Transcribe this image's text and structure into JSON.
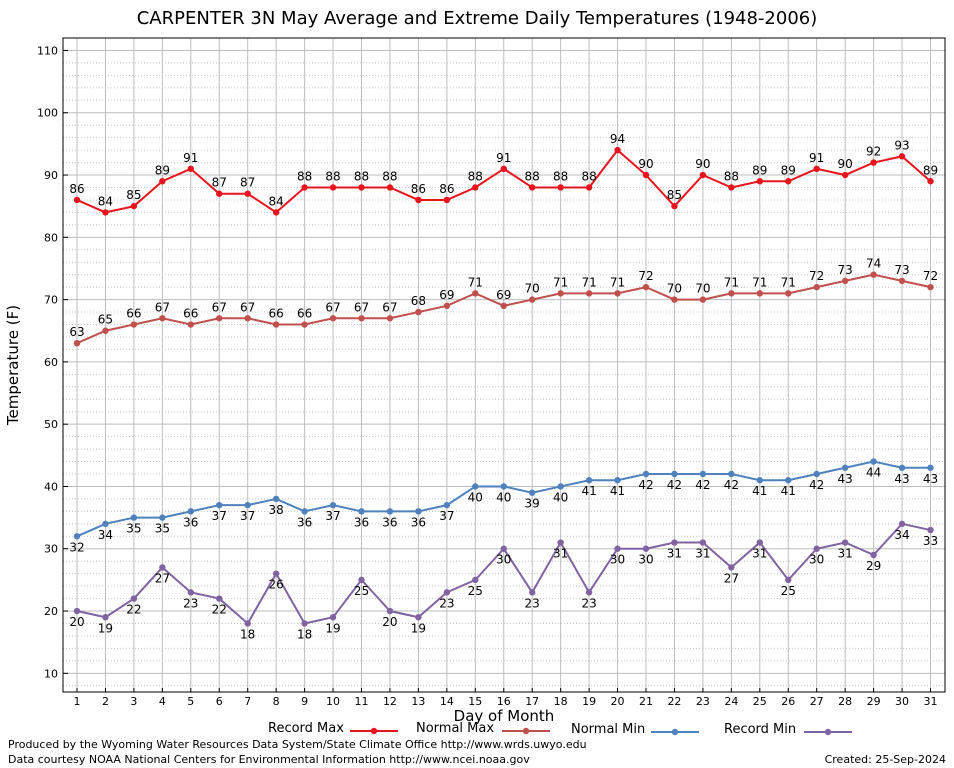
{
  "chart_data": {
    "type": "line",
    "title": "CARPENTER 3N May Average and Extreme Daily Temperatures (1948-2006)",
    "xlabel": "Day of Month",
    "ylabel": "Temperature (F)",
    "x": [
      1,
      2,
      3,
      4,
      5,
      6,
      7,
      8,
      9,
      10,
      11,
      12,
      13,
      14,
      15,
      16,
      17,
      18,
      19,
      20,
      21,
      22,
      23,
      24,
      25,
      26,
      27,
      28,
      29,
      30,
      31
    ],
    "ylim": [
      7,
      112
    ],
    "yticks": [
      10,
      20,
      30,
      40,
      50,
      60,
      70,
      80,
      90,
      100,
      110
    ],
    "grid": true,
    "legend_position": "bottom",
    "series": [
      {
        "name": "Record Max",
        "color": "#e8141e",
        "label_pos": "above",
        "values": [
          86,
          84,
          85,
          89,
          91,
          87,
          87,
          84,
          88,
          88,
          88,
          88,
          86,
          86,
          88,
          91,
          88,
          88,
          88,
          94,
          90,
          85,
          90,
          88,
          89,
          89,
          91,
          90,
          92,
          93,
          89
        ]
      },
      {
        "name": "Normal Max",
        "color": "#c0504d",
        "label_pos": "above",
        "values": [
          63,
          65,
          66,
          67,
          66,
          67,
          67,
          66,
          66,
          67,
          67,
          67,
          68,
          69,
          71,
          69,
          70,
          71,
          71,
          71,
          72,
          70,
          70,
          71,
          71,
          71,
          72,
          73,
          74,
          73,
          72
        ]
      },
      {
        "name": "Normal Min",
        "color": "#4f81bd",
        "label_pos": "below",
        "values": [
          32,
          34,
          35,
          35,
          36,
          37,
          37,
          38,
          36,
          37,
          36,
          36,
          36,
          37,
          40,
          40,
          39,
          40,
          41,
          41,
          42,
          42,
          42,
          42,
          41,
          41,
          42,
          43,
          44,
          43,
          43
        ]
      },
      {
        "name": "Record Min",
        "color": "#8064a2",
        "label_pos": "below",
        "values": [
          20,
          19,
          22,
          27,
          23,
          22,
          18,
          26,
          18,
          19,
          25,
          20,
          19,
          23,
          25,
          30,
          23,
          31,
          23,
          30,
          30,
          31,
          31,
          27,
          31,
          25,
          30,
          31,
          29,
          34,
          33
        ]
      }
    ]
  },
  "footer": {
    "credit": "Produced by the Wyoming Water Resources Data System/State Climate Office http://www.wrds.uwyo.edu",
    "source": "Data courtesy NOAA National Centers for Environmental Information http://www.ncei.noaa.gov",
    "created": "Created:  25-Sep-2024"
  }
}
